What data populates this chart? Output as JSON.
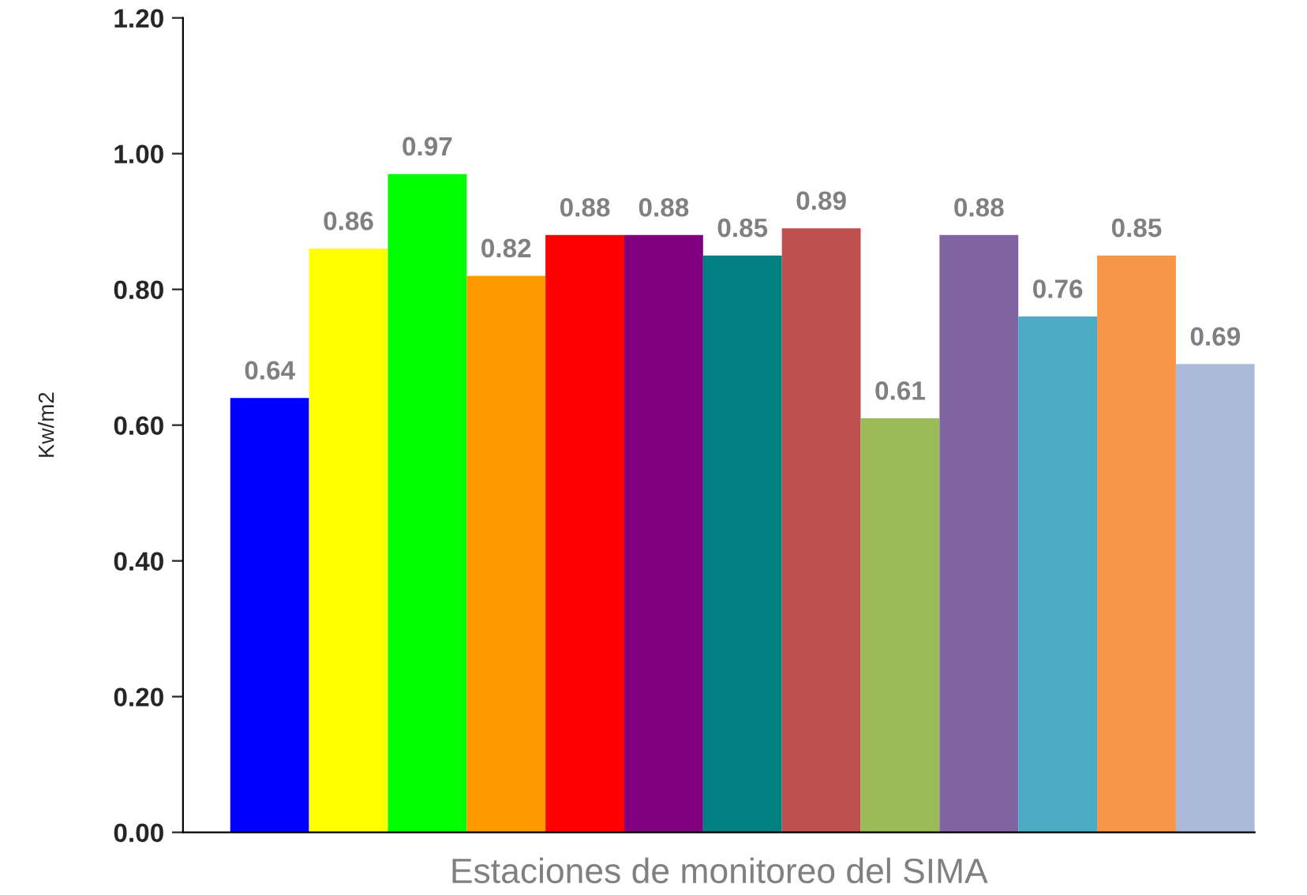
{
  "chart_data": {
    "type": "bar",
    "xlabel": "Estaciones de monitoreo del SIMA",
    "ylabel": "Kw/m2",
    "categories": [
      null,
      null,
      null,
      null,
      null,
      null,
      null,
      null,
      null,
      null,
      null,
      null,
      null
    ],
    "values": [
      0.64,
      0.86,
      0.97,
      0.82,
      0.88,
      0.88,
      0.85,
      0.89,
      0.61,
      0.88,
      0.76,
      0.85,
      0.69
    ],
    "colors": [
      "#0000ff",
      "#ffff00",
      "#00ff00",
      "#ff9900",
      "#ff0000",
      "#800080",
      "#008080",
      "#c0504d",
      "#9bbb59",
      "#8064a2",
      "#4bacc6",
      "#f79646",
      "#acb9d9"
    ],
    "ylim": [
      0,
      1.2
    ],
    "yticks": [
      {
        "value": 0,
        "label": "0.00"
      },
      {
        "value": 0.2,
        "label": "0.20"
      },
      {
        "value": 0.4,
        "label": "0.40"
      },
      {
        "value": 0.6,
        "label": "0.60"
      },
      {
        "value": 0.8,
        "label": "0.80"
      },
      {
        "value": 1.0,
        "label": "1.00"
      },
      {
        "value": 1.2,
        "label": "1.20"
      }
    ],
    "data_labels": true,
    "grid": false,
    "legend": false
  }
}
